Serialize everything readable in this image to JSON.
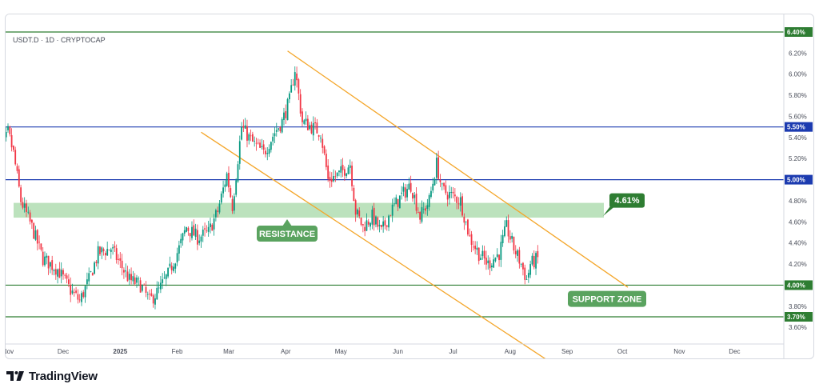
{
  "header": {
    "symbol": "USDT.D · 1D · CRYPTOCAP"
  },
  "brand": {
    "name": "TradingView"
  },
  "chart_data": {
    "type": "candlestick",
    "title": "USDT.D · 1D · CRYPTOCAP",
    "y_ticks": [
      "6.20%",
      "6.00%",
      "5.80%",
      "5.60%",
      "5.40%",
      "5.20%",
      "4.80%",
      "4.60%",
      "4.40%",
      "4.20%",
      "3.80%",
      "3.60%"
    ],
    "x_ticks": [
      "Nov",
      "Dec",
      "2025",
      "Feb",
      "Mar",
      "Apr",
      "May",
      "Jun",
      "Jul",
      "Aug",
      "Sep",
      "Oct",
      "Nov",
      "Dec"
    ],
    "ylim": [
      3.5,
      6.45
    ],
    "horizontal_levels": [
      {
        "value": 6.4,
        "label": "6.40%",
        "color": "#2e7d32"
      },
      {
        "value": 5.5,
        "label": "5.50%",
        "color": "#1c3bb0"
      },
      {
        "value": 5.0,
        "label": "5.00%",
        "color": "#1c3bb0"
      },
      {
        "value": 4.0,
        "label": "4.00%",
        "color": "#2e7d32"
      },
      {
        "value": 3.7,
        "label": "3.70%",
        "color": "#2e7d32"
      }
    ],
    "resistance_zone": {
      "low": 4.64,
      "high": 4.78,
      "label": "RESISTANCE",
      "level_label": "4.61%"
    },
    "support_zone": {
      "label": "SUPPORT ZONE"
    },
    "descending_channel": {
      "upper_line": {
        "from": [
          "Apr",
          6.22
        ],
        "to": [
          "Oct",
          3.98
        ]
      },
      "lower_line": {
        "from": [
          "Feb",
          5.45
        ],
        "to": [
          "Aug",
          3.28
        ]
      }
    },
    "candle_colors": {
      "up": "#089981",
      "down": "#f23645"
    },
    "price_path": [
      [
        "2024-10-25",
        5.05
      ],
      [
        "2024-11-01",
        5.45
      ],
      [
        "2024-11-04",
        5.25
      ],
      [
        "2024-11-08",
        4.8
      ],
      [
        "2024-11-14",
        4.55
      ],
      [
        "2024-11-20",
        4.25
      ],
      [
        "2024-11-28",
        4.15
      ],
      [
        "2024-12-05",
        3.95
      ],
      [
        "2024-12-10",
        3.85
      ],
      [
        "2024-12-15",
        4.05
      ],
      [
        "2024-12-20",
        4.3
      ],
      [
        "2024-12-27",
        4.35
      ],
      [
        "2025-01-01",
        4.2
      ],
      [
        "2025-01-06",
        4.05
      ],
      [
        "2025-01-12",
        4.0
      ],
      [
        "2025-01-17",
        3.85
      ],
      [
        "2025-01-22",
        3.95
      ],
      [
        "2025-01-27",
        4.1
      ],
      [
        "2025-02-02",
        4.35
      ],
      [
        "2025-02-06",
        4.55
      ],
      [
        "2025-02-12",
        4.45
      ],
      [
        "2025-02-18",
        4.5
      ],
      [
        "2025-02-23",
        4.7
      ],
      [
        "2025-02-28",
        5.05
      ],
      [
        "2025-03-03",
        4.75
      ],
      [
        "2025-03-08",
        5.5
      ],
      [
        "2025-03-14",
        5.35
      ],
      [
        "2025-03-20",
        5.25
      ],
      [
        "2025-03-26",
        5.45
      ],
      [
        "2025-03-30",
        5.55
      ],
      [
        "2025-04-03",
        5.75
      ],
      [
        "2025-04-06",
        6.05
      ],
      [
        "2025-04-10",
        5.55
      ],
      [
        "2025-04-15",
        5.5
      ],
      [
        "2025-04-20",
        5.45
      ],
      [
        "2025-04-24",
        5.0
      ],
      [
        "2025-04-30",
        5.05
      ],
      [
        "2025-05-06",
        5.15
      ],
      [
        "2025-05-09",
        4.7
      ],
      [
        "2025-05-13",
        4.55
      ],
      [
        "2025-05-18",
        4.65
      ],
      [
        "2025-05-23",
        4.5
      ],
      [
        "2025-05-28",
        4.7
      ],
      [
        "2025-06-03",
        4.85
      ],
      [
        "2025-06-08",
        4.95
      ],
      [
        "2025-06-13",
        4.65
      ],
      [
        "2025-06-18",
        4.8
      ],
      [
        "2025-06-22",
        5.15
      ],
      [
        "2025-06-25",
        4.9
      ],
      [
        "2025-06-30",
        4.85
      ],
      [
        "2025-07-05",
        4.8
      ],
      [
        "2025-07-10",
        4.45
      ],
      [
        "2025-07-15",
        4.3
      ],
      [
        "2025-07-20",
        4.2
      ],
      [
        "2025-07-26",
        4.3
      ],
      [
        "2025-07-30",
        4.55
      ],
      [
        "2025-08-03",
        4.35
      ],
      [
        "2025-08-07",
        4.2
      ],
      [
        "2025-08-10",
        4.05
      ],
      [
        "2025-08-12",
        4.2
      ],
      [
        "2025-08-16",
        4.25
      ]
    ]
  }
}
